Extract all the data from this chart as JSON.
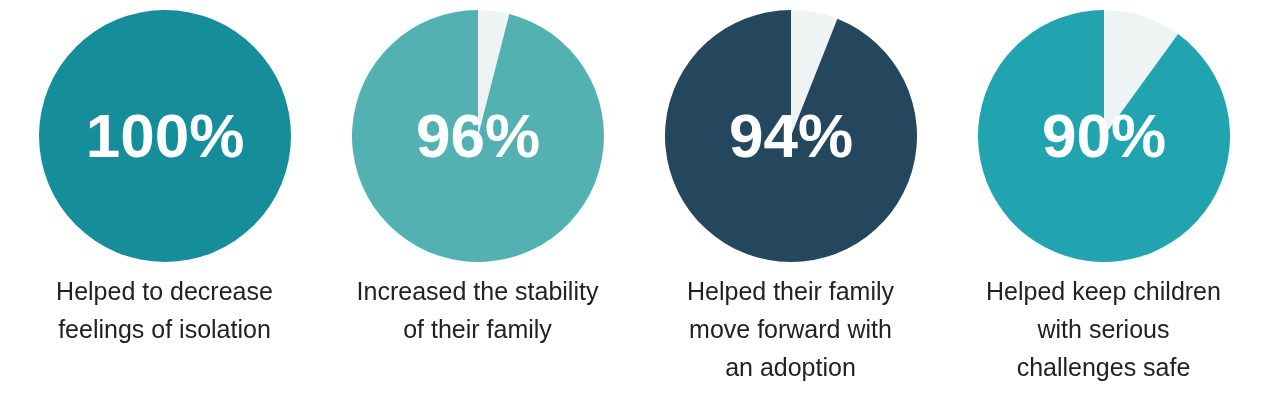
{
  "chart_data": [
    {
      "type": "pie",
      "categories": [
        null,
        null
      ],
      "values": [
        0,
        100
      ],
      "colors": [
        "#eef3f4",
        "#168d9a"
      ],
      "value_labels": [
        null,
        "100%"
      ],
      "title": "Helped to decrease\nfeelings of isolation"
    },
    {
      "type": "pie",
      "categories": [
        null,
        null
      ],
      "values": [
        4,
        96
      ],
      "colors": [
        "#eef3f4",
        "#53b1b1"
      ],
      "value_labels": [
        null,
        "96%"
      ],
      "title": "Increased the stability\nof their family"
    },
    {
      "type": "pie",
      "categories": [
        null,
        null
      ],
      "values": [
        6,
        94
      ],
      "colors": [
        "#eef3f4",
        "#24475e"
      ],
      "value_labels": [
        null,
        "94%"
      ],
      "title": "Helped their family\nmove forward with\nan adoption"
    },
    {
      "type": "pie",
      "categories": [
        null,
        null
      ],
      "values": [
        10,
        90
      ],
      "colors": [
        "#eef3f4",
        "#21a4b0"
      ],
      "value_labels": [
        null,
        "90%"
      ],
      "title": "Helped keep children\nwith serious\nchallenges safe"
    }
  ]
}
